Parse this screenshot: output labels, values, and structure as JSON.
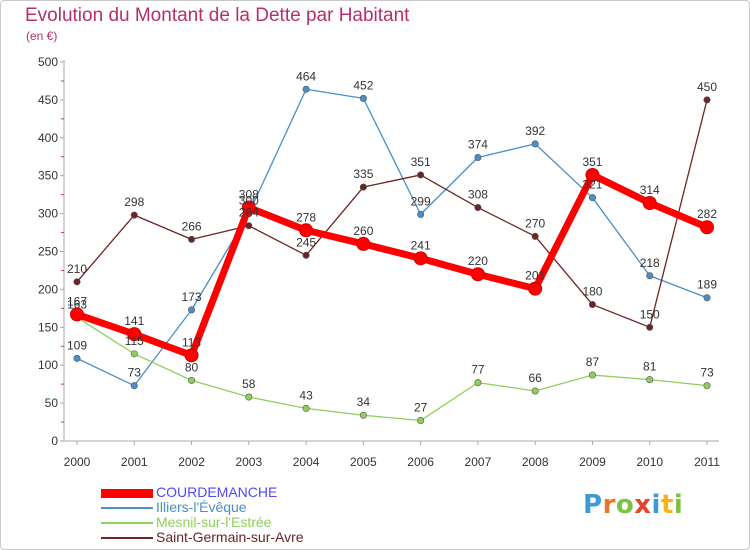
{
  "title": "Evolution du Montant de la Dette par Habitant",
  "subtitle": "(en €)",
  "logo": {
    "text": "Proxiti",
    "letters": [
      {
        "ch": "P",
        "color": "#3b9bd6"
      },
      {
        "ch": "r",
        "color": "#e8762b"
      },
      {
        "ch": "o",
        "color": "#7dc243"
      },
      {
        "ch": "x",
        "color": "#e8432b"
      },
      {
        "ch": "i",
        "color": "#3b9bd6"
      },
      {
        "ch": "t",
        "color": "#f2b51c"
      },
      {
        "ch": "i",
        "color": "#7dc243"
      }
    ]
  },
  "chart_data": {
    "type": "line",
    "title": "Evolution du Montant de la Dette par Habitant",
    "subtitle": "(en €)",
    "categories": [
      "2000",
      "2001",
      "2002",
      "2003",
      "2004",
      "2005",
      "2006",
      "2007",
      "2008",
      "2009",
      "2010",
      "2011"
    ],
    "ylim": [
      0,
      500
    ],
    "yticks": [
      0,
      50,
      100,
      150,
      200,
      250,
      300,
      350,
      400,
      450,
      500
    ],
    "grid": false,
    "legend_position": "bottom-left",
    "series": [
      {
        "name": "COURDEMANCHE",
        "color": "#ff0000",
        "labelColor": "#333333",
        "values": [
          167,
          141,
          113,
          308,
          278,
          260,
          241,
          220,
          201,
          351,
          314,
          282
        ],
        "labels": [
          "167",
          "141",
          "113",
          "308",
          "278",
          "260",
          "241",
          "220",
          "201",
          "351",
          "314",
          "282"
        ]
      },
      {
        "name": "Illiers-l'Évêque",
        "color": "#4a8fc7",
        "labelColor": "#333333",
        "values": [
          109,
          73,
          173,
          300,
          464,
          452,
          299,
          374,
          392,
          321,
          218,
          189
        ],
        "labels": [
          "109",
          "73",
          "173",
          "300",
          "464",
          "452",
          "299",
          "374",
          "392",
          "321",
          "218",
          "189"
        ]
      },
      {
        "name": "Mesnil-sur-l'Estrée",
        "color": "#8ed05a",
        "labelColor": "#333333",
        "values": [
          163,
          115,
          80,
          58,
          43,
          34,
          27,
          77,
          66,
          87,
          81,
          73
        ],
        "labels": [
          "163",
          "115",
          "80",
          "58",
          "43",
          "34",
          "27",
          "77",
          "66",
          "87",
          "81",
          "73"
        ]
      },
      {
        "name": "Saint-Germain-sur-Avre",
        "color": "#6e2424",
        "labelColor": "#333333",
        "values": [
          210,
          298,
          266,
          284,
          245,
          335,
          351,
          308,
          270,
          180,
          150,
          450
        ],
        "labels": [
          "210",
          "298",
          "266",
          "284",
          "245",
          "335",
          "351",
          "308",
          "270",
          "180",
          "150",
          "450"
        ]
      }
    ]
  }
}
